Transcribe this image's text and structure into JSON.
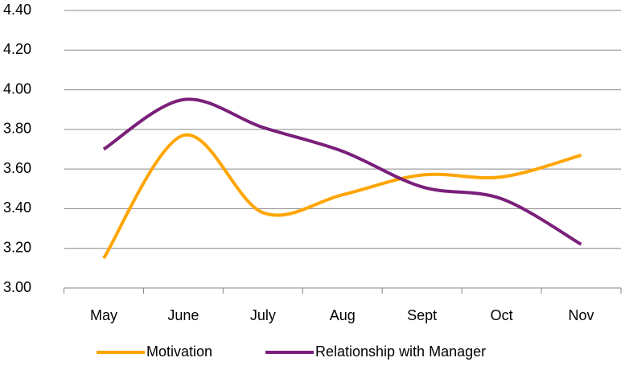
{
  "chart_data": {
    "type": "line",
    "categories": [
      "May",
      "June",
      "July",
      "Aug",
      "Sept",
      "Oct",
      "Nov"
    ],
    "series": [
      {
        "name": "Motivation",
        "color": "#ffa500",
        "values": [
          3.15,
          3.77,
          3.38,
          3.47,
          3.57,
          3.56,
          3.67
        ]
      },
      {
        "name": "Relationship with Manager",
        "color": "#7a1f7a",
        "values": [
          3.7,
          3.95,
          3.81,
          3.69,
          3.51,
          3.45,
          3.22
        ]
      }
    ],
    "ylim": [
      3.0,
      4.4
    ],
    "yticks": [
      {
        "value": 3.0,
        "label": "3.00"
      },
      {
        "value": 3.2,
        "label": "3.20"
      },
      {
        "value": 3.4,
        "label": "3.40"
      },
      {
        "value": 3.6,
        "label": "3.60"
      },
      {
        "value": 3.8,
        "label": "3.80"
      },
      {
        "value": 4.0,
        "label": "4.00"
      },
      {
        "value": 4.2,
        "label": "4.20"
      },
      {
        "value": 4.4,
        "label": "4.40"
      }
    ],
    "grid": true,
    "smooth": true,
    "legend": "bottom"
  }
}
